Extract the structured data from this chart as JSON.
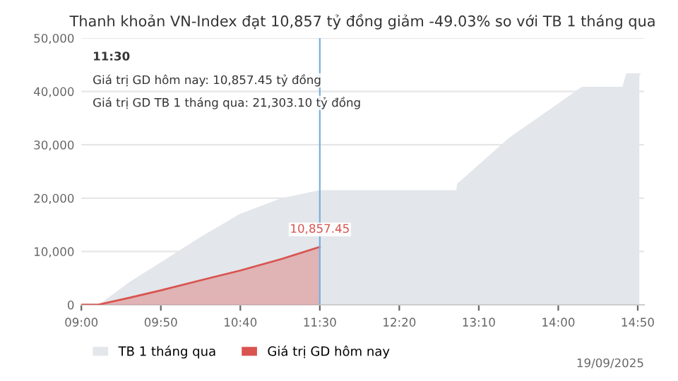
{
  "chart_data": {
    "type": "area",
    "title": "Thanh khoản VN-Index đạt 10,857 tỷ đồng giảm -49.03% so với TB 1 tháng qua",
    "series": [
      {
        "name": "TB 1 tháng qua",
        "color": "#e3e6ea",
        "x": [
          9.0,
          9.2,
          9.5,
          9.83,
          10.25,
          10.67,
          11.1,
          11.5,
          12.94,
          12.95,
          13.5,
          14.0,
          14.25,
          14.68,
          14.72,
          14.85
        ],
        "values": [
          0,
          0,
          4000,
          7700,
          12500,
          16900,
          19800,
          21303.1,
          21303.1,
          22600,
          31300,
          37500,
          40700,
          40700,
          43200,
          43200
        ]
      },
      {
        "name": "Giá trị GD hôm nay",
        "color": "#d9534f",
        "x": [
          9.0,
          9.17,
          9.5,
          9.83,
          10.25,
          10.67,
          11.1,
          11.5
        ],
        "values": [
          0,
          0,
          1300,
          2700,
          4600,
          6450,
          8600,
          10857.45
        ]
      }
    ],
    "xlim": [
      9.0,
      14.9
    ],
    "xticks": [
      {
        "value": 9.0,
        "label": "09:00"
      },
      {
        "value": 9.8333,
        "label": "09:50"
      },
      {
        "value": 10.6667,
        "label": "10:40"
      },
      {
        "value": 11.5,
        "label": "11:30"
      },
      {
        "value": 12.3333,
        "label": "12:20"
      },
      {
        "value": 13.1667,
        "label": "13:10"
      },
      {
        "value": 14.0,
        "label": "14:00"
      },
      {
        "value": 14.8333,
        "label": "14:50"
      }
    ],
    "ylim": [
      0,
      50000
    ],
    "yticks": [
      0,
      {
        "value": 10000,
        "label": "10,000"
      },
      {
        "value": 20000,
        "label": "20,000"
      },
      {
        "value": 30000,
        "label": "30,000"
      },
      {
        "value": 40000,
        "label": "40,000"
      },
      {
        "value": 50000,
        "label": "50,000"
      }
    ],
    "grid": "y",
    "legend": "bottom",
    "ref_lines": [
      {
        "axis": "x",
        "value": 11.5,
        "color": "#7aaee0"
      }
    ],
    "annotations": [
      {
        "text": "10,857.45",
        "x": 11.5,
        "y": 10857.45
      },
      "11:30",
      "Giá trị GD hôm nay: 10,857.45 tỷ đồng",
      "Giá trị GD TB 1 tháng qua: 21,303.10 tỷ đồng",
      "19/09/2025"
    ]
  }
}
